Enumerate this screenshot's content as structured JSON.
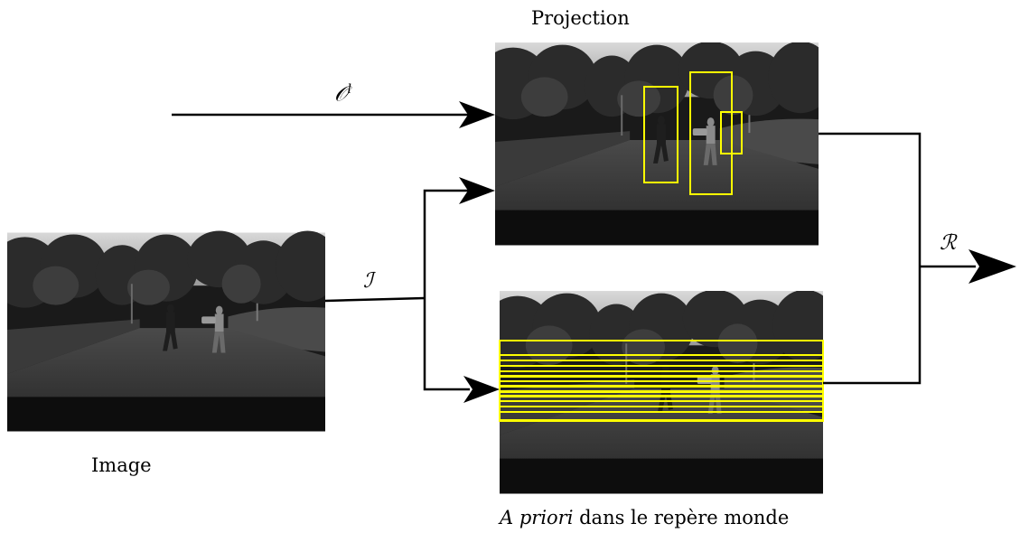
{
  "labels": {
    "projection": "Projection",
    "image": "Image",
    "apriori_italic": "A priori",
    "apriori_rest": " dans le repère monde",
    "input_O": "𝒪",
    "input_O_sup": "l",
    "input_I": "ℐ",
    "output_R": "ℛ"
  },
  "colors": {
    "box": "#ffff00",
    "arrow": "#000000"
  },
  "photos": {
    "input": "grayscale-street-scene-two-pedestrians",
    "projection": "street-scene-with-3-vertical-boxes",
    "apriori": "street-scene-with-horizontal-bands"
  },
  "projection_box_count": 3,
  "apriori_band_count": 11
}
